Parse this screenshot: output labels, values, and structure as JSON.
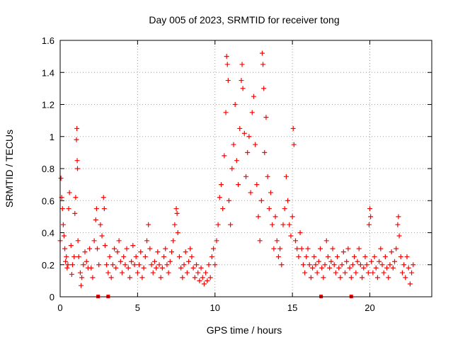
{
  "chart_data": {
    "type": "scatter",
    "title": "Day 005 of 2023, SRMTID for receiver tong",
    "xlabel": "GPS time / hours",
    "ylabel": "SRMTID / TECUs",
    "xlim": [
      0,
      24
    ],
    "ylim": [
      0,
      1.6
    ],
    "x_ticks": [
      0,
      5,
      10,
      15,
      20
    ],
    "x_tick_labels": [
      "0",
      "5",
      "10",
      "15",
      "20"
    ],
    "y_ticks": [
      0,
      0.2,
      0.4,
      0.6,
      0.8,
      1.0,
      1.2,
      1.4,
      1.6
    ],
    "y_tick_labels": [
      "0",
      "0.2",
      "0.4",
      "0.6",
      "0.8",
      "1",
      "1.2",
      "1.4",
      "1.6"
    ],
    "grid": true,
    "marker": "+",
    "marker_color": "#ff0000",
    "data_gap_markers_x": [
      2.45,
      3.1,
      16.85,
      18.8
    ],
    "series": [
      {
        "name": "SRMTID",
        "color": "#ff0000",
        "points": [
          [
            0.0,
            0.35
          ],
          [
            0.05,
            0.74
          ],
          [
            0.1,
            0.62
          ],
          [
            0.15,
            0.55
          ],
          [
            0.2,
            0.45
          ],
          [
            0.25,
            0.38
          ],
          [
            0.3,
            0.3
          ],
          [
            0.35,
            0.22
          ],
          [
            0.4,
            0.25
          ],
          [
            0.45,
            0.18
          ],
          [
            0.5,
            0.2
          ],
          [
            0.55,
            0.55
          ],
          [
            0.6,
            0.65
          ],
          [
            0.7,
            0.32
          ],
          [
            0.75,
            0.14
          ],
          [
            0.8,
            0.2
          ],
          [
            0.9,
            0.25
          ],
          [
            0.95,
            0.52
          ],
          [
            1.0,
            0.62
          ],
          [
            1.05,
            0.98
          ],
          [
            1.08,
            1.05
          ],
          [
            1.1,
            0.85
          ],
          [
            1.12,
            0.8
          ],
          [
            1.15,
            0.35
          ],
          [
            1.2,
            0.25
          ],
          [
            1.3,
            0.15
          ],
          [
            1.35,
            0.07
          ],
          [
            1.4,
            0.12
          ],
          [
            1.5,
            0.2
          ],
          [
            1.6,
            0.28
          ],
          [
            1.7,
            0.22
          ],
          [
            1.8,
            0.18
          ],
          [
            1.9,
            0.3
          ],
          [
            2.0,
            0.18
          ],
          [
            2.1,
            0.12
          ],
          [
            2.2,
            0.35
          ],
          [
            2.3,
            0.48
          ],
          [
            2.35,
            0.55
          ],
          [
            2.4,
            0.3
          ],
          [
            2.5,
            0.2
          ],
          [
            2.6,
            0.45
          ],
          [
            2.7,
            0.38
          ],
          [
            2.8,
            0.62
          ],
          [
            2.85,
            0.55
          ],
          [
            2.9,
            0.32
          ],
          [
            3.0,
            0.2
          ],
          [
            3.1,
            0.15
          ],
          [
            3.2,
            0.25
          ],
          [
            3.3,
            0.12
          ],
          [
            3.4,
            0.2
          ],
          [
            3.5,
            0.3
          ],
          [
            3.6,
            0.18
          ],
          [
            3.7,
            0.28
          ],
          [
            3.8,
            0.35
          ],
          [
            3.9,
            0.22
          ],
          [
            4.0,
            0.15
          ],
          [
            4.1,
            0.25
          ],
          [
            4.2,
            0.2
          ],
          [
            4.3,
            0.3
          ],
          [
            4.4,
            0.18
          ],
          [
            4.5,
            0.12
          ],
          [
            4.6,
            0.22
          ],
          [
            4.7,
            0.32
          ],
          [
            4.8,
            0.2
          ],
          [
            4.9,
            0.25
          ],
          [
            5.0,
            0.15
          ],
          [
            5.1,
            0.2
          ],
          [
            5.2,
            0.28
          ],
          [
            5.3,
            0.12
          ],
          [
            5.4,
            0.18
          ],
          [
            5.5,
            0.25
          ],
          [
            5.6,
            0.35
          ],
          [
            5.7,
            0.45
          ],
          [
            5.8,
            0.3
          ],
          [
            5.9,
            0.2
          ],
          [
            6.0,
            0.15
          ],
          [
            6.1,
            0.22
          ],
          [
            6.2,
            0.18
          ],
          [
            6.3,
            0.28
          ],
          [
            6.4,
            0.2
          ],
          [
            6.5,
            0.12
          ],
          [
            6.6,
            0.18
          ],
          [
            6.7,
            0.25
          ],
          [
            6.8,
            0.3
          ],
          [
            6.9,
            0.2
          ],
          [
            7.0,
            0.15
          ],
          [
            7.1,
            0.22
          ],
          [
            7.2,
            0.28
          ],
          [
            7.3,
            0.35
          ],
          [
            7.4,
            0.45
          ],
          [
            7.5,
            0.55
          ],
          [
            7.55,
            0.52
          ],
          [
            7.6,
            0.4
          ],
          [
            7.7,
            0.25
          ],
          [
            7.8,
            0.18
          ],
          [
            7.9,
            0.12
          ],
          [
            8.0,
            0.2
          ],
          [
            8.1,
            0.28
          ],
          [
            8.2,
            0.15
          ],
          [
            8.3,
            0.22
          ],
          [
            8.4,
            0.3
          ],
          [
            8.5,
            0.25
          ],
          [
            8.6,
            0.18
          ],
          [
            8.7,
            0.12
          ],
          [
            8.8,
            0.2
          ],
          [
            8.9,
            0.15
          ],
          [
            9.0,
            0.1
          ],
          [
            9.1,
            0.18
          ],
          [
            9.2,
            0.12
          ],
          [
            9.3,
            0.08
          ],
          [
            9.4,
            0.15
          ],
          [
            9.5,
            0.1
          ],
          [
            9.6,
            0.2
          ],
          [
            9.7,
            0.12
          ],
          [
            9.8,
            0.25
          ],
          [
            9.9,
            0.3
          ],
          [
            10.0,
            0.2
          ],
          [
            10.1,
            0.35
          ],
          [
            10.2,
            0.45
          ],
          [
            10.3,
            0.62
          ],
          [
            10.4,
            0.7
          ],
          [
            10.5,
            0.55
          ],
          [
            10.6,
            0.88
          ],
          [
            10.7,
            1.15
          ],
          [
            10.75,
            1.5
          ],
          [
            10.8,
            1.45
          ],
          [
            10.85,
            1.35
          ],
          [
            10.9,
            0.6
          ],
          [
            11.0,
            0.45
          ],
          [
            11.1,
            0.8
          ],
          [
            11.2,
            0.95
          ],
          [
            11.3,
            1.2
          ],
          [
            11.4,
            0.85
          ],
          [
            11.5,
            0.7
          ],
          [
            11.6,
            1.05
          ],
          [
            11.7,
            1.35
          ],
          [
            11.75,
            1.45
          ],
          [
            11.8,
            1.3
          ],
          [
            11.9,
            1.02
          ],
          [
            12.0,
            0.75
          ],
          [
            12.1,
            0.9
          ],
          [
            12.2,
            1.0
          ],
          [
            12.3,
            0.65
          ],
          [
            12.4,
            1.15
          ],
          [
            12.5,
            1.25
          ],
          [
            12.6,
            0.95
          ],
          [
            12.7,
            0.7
          ],
          [
            12.8,
            0.5
          ],
          [
            12.9,
            0.35
          ],
          [
            13.0,
            0.6
          ],
          [
            13.05,
            1.52
          ],
          [
            13.1,
            1.45
          ],
          [
            13.15,
            1.3
          ],
          [
            13.2,
            0.9
          ],
          [
            13.3,
            1.12
          ],
          [
            13.4,
            0.75
          ],
          [
            13.5,
            0.55
          ],
          [
            13.6,
            0.65
          ],
          [
            13.7,
            0.45
          ],
          [
            13.8,
            0.3
          ],
          [
            13.9,
            0.5
          ],
          [
            14.0,
            0.35
          ],
          [
            14.1,
            0.25
          ],
          [
            14.2,
            0.3
          ],
          [
            14.3,
            0.2
          ],
          [
            14.4,
            0.45
          ],
          [
            14.5,
            0.55
          ],
          [
            14.6,
            0.75
          ],
          [
            14.7,
            0.6
          ],
          [
            14.8,
            0.45
          ],
          [
            14.9,
            0.38
          ],
          [
            15.0,
            0.5
          ],
          [
            15.05,
            1.05
          ],
          [
            15.1,
            0.95
          ],
          [
            15.2,
            0.35
          ],
          [
            15.3,
            0.3
          ],
          [
            15.4,
            0.25
          ],
          [
            15.5,
            0.4
          ],
          [
            15.6,
            0.3
          ],
          [
            15.7,
            0.2
          ],
          [
            15.8,
            0.15
          ],
          [
            15.9,
            0.25
          ],
          [
            16.0,
            0.3
          ],
          [
            16.1,
            0.2
          ],
          [
            16.2,
            0.12
          ],
          [
            16.3,
            0.18
          ],
          [
            16.4,
            0.25
          ],
          [
            16.5,
            0.2
          ],
          [
            16.6,
            0.15
          ],
          [
            16.7,
            0.22
          ],
          [
            16.8,
            0.3
          ],
          [
            16.9,
            0.18
          ],
          [
            17.0,
            0.12
          ],
          [
            17.1,
            0.2
          ],
          [
            17.2,
            0.35
          ],
          [
            17.3,
            0.25
          ],
          [
            17.4,
            0.18
          ],
          [
            17.5,
            0.22
          ],
          [
            17.6,
            0.3
          ],
          [
            17.7,
            0.2
          ],
          [
            17.8,
            0.15
          ],
          [
            17.9,
            0.25
          ],
          [
            18.0,
            0.18
          ],
          [
            18.1,
            0.12
          ],
          [
            18.2,
            0.2
          ],
          [
            18.3,
            0.28
          ],
          [
            18.4,
            0.15
          ],
          [
            18.5,
            0.22
          ],
          [
            18.6,
            0.3
          ],
          [
            18.7,
            0.18
          ],
          [
            18.8,
            0.12
          ],
          [
            18.9,
            0.2
          ],
          [
            19.0,
            0.25
          ],
          [
            19.1,
            0.15
          ],
          [
            19.2,
            0.22
          ],
          [
            19.3,
            0.3
          ],
          [
            19.4,
            0.2
          ],
          [
            19.5,
            0.12
          ],
          [
            19.6,
            0.18
          ],
          [
            19.7,
            0.25
          ],
          [
            19.8,
            0.2
          ],
          [
            19.9,
            0.15
          ],
          [
            19.95,
            0.45
          ],
          [
            20.0,
            0.55
          ],
          [
            20.05,
            0.5
          ],
          [
            20.1,
            0.22
          ],
          [
            20.2,
            0.15
          ],
          [
            20.3,
            0.25
          ],
          [
            20.4,
            0.18
          ],
          [
            20.5,
            0.12
          ],
          [
            20.6,
            0.22
          ],
          [
            20.7,
            0.3
          ],
          [
            20.8,
            0.2
          ],
          [
            20.9,
            0.15
          ],
          [
            21.0,
            0.25
          ],
          [
            21.1,
            0.18
          ],
          [
            21.2,
            0.12
          ],
          [
            21.3,
            0.2
          ],
          [
            21.4,
            0.28
          ],
          [
            21.5,
            0.18
          ],
          [
            21.6,
            0.22
          ],
          [
            21.7,
            0.3
          ],
          [
            21.8,
            0.45
          ],
          [
            21.85,
            0.5
          ],
          [
            21.9,
            0.38
          ],
          [
            22.0,
            0.25
          ],
          [
            22.1,
            0.15
          ],
          [
            22.2,
            0.2
          ],
          [
            22.3,
            0.12
          ],
          [
            22.4,
            0.25
          ],
          [
            22.5,
            0.18
          ],
          [
            22.6,
            0.08
          ],
          [
            22.7,
            0.15
          ],
          [
            22.8,
            0.2
          ]
        ]
      }
    ]
  }
}
